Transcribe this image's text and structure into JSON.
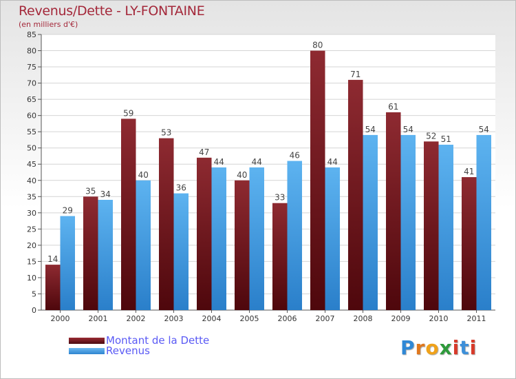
{
  "title": "Revenus/Dette - LY-FONTAINE",
  "subtitle": "(en milliers d'€)",
  "logo": "Proxiti",
  "colors": {
    "dette": "#7b1a22",
    "revenus": "#4aa3e8",
    "title": "#a4283a",
    "legend_text": "#5a5af5"
  },
  "chart_data": {
    "type": "bar",
    "categories": [
      "2000",
      "2001",
      "2002",
      "2003",
      "2004",
      "2005",
      "2006",
      "2007",
      "2008",
      "2009",
      "2010",
      "2011"
    ],
    "series": [
      {
        "name": "Montant de la Dette",
        "values": [
          14,
          35,
          59,
          53,
          47,
          40,
          33,
          80,
          71,
          61,
          52,
          41
        ]
      },
      {
        "name": "Revenus",
        "values": [
          29,
          34,
          40,
          36,
          44,
          44,
          46,
          44,
          54,
          54,
          51,
          54
        ]
      }
    ],
    "ylim": [
      0,
      85
    ],
    "yticks": [
      0,
      5,
      10,
      15,
      20,
      25,
      30,
      35,
      40,
      45,
      50,
      55,
      60,
      65,
      70,
      75,
      80,
      85
    ],
    "grid": true,
    "legend_position": "bottom-left"
  }
}
